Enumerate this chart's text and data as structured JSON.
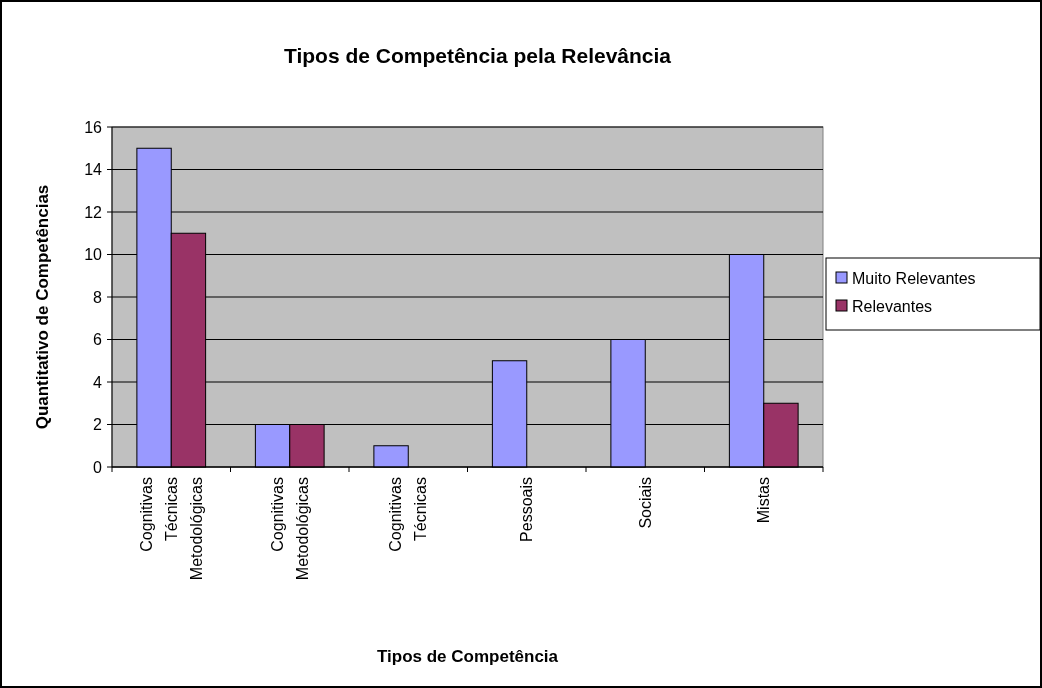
{
  "chart_data": {
    "type": "bar",
    "title": "Tipos de Competência pela Relevância",
    "xlabel": "Tipos de Competência",
    "ylabel": "Quantitativo de Competências",
    "categories": [
      "Cognitivas\nTécnicas\nMetodológicas",
      "Cognitivas\nMetodológicas",
      "Cognitivas\nTécnicas",
      "Pessoais",
      "Sociais",
      "Mistas"
    ],
    "series": [
      {
        "name": "Muito Relevantes",
        "color": "#9999ff",
        "values": [
          15,
          2,
          1,
          5,
          6,
          10
        ]
      },
      {
        "name": "Relevantes",
        "color": "#993366",
        "values": [
          11,
          2,
          0,
          0,
          0,
          3
        ]
      }
    ],
    "ylim": [
      0,
      16
    ],
    "yticks": [
      0,
      2,
      4,
      6,
      8,
      10,
      12,
      14,
      16
    ],
    "grid": "y",
    "legend": "right"
  }
}
